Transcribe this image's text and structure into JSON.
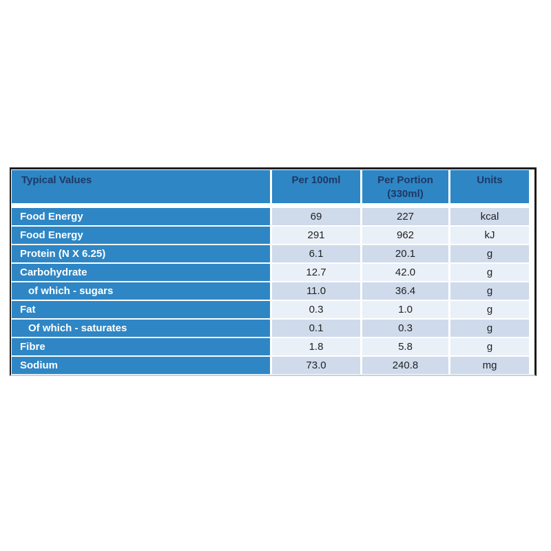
{
  "chart_data": {
    "type": "table",
    "title": "Typical Values",
    "columns": [
      "Typical Values",
      "Per 100ml",
      "Per Portion (330ml)",
      "Units"
    ],
    "numeric_rows": [
      {
        "label": "Food Energy",
        "per_100ml": 69,
        "per_portion_330ml": 227,
        "units": "kcal"
      },
      {
        "label": "Food Energy",
        "per_100ml": 291,
        "per_portion_330ml": 962,
        "units": "kJ"
      },
      {
        "label": "Protein (N X 6.25)",
        "per_100ml": 6.1,
        "per_portion_330ml": 20.1,
        "units": "g"
      },
      {
        "label": "Carbohydrate",
        "per_100ml": 12.7,
        "per_portion_330ml": 42.0,
        "units": "g"
      },
      {
        "label": "of which - sugars",
        "per_100ml": 11.0,
        "per_portion_330ml": 36.4,
        "units": "g"
      },
      {
        "label": "Fat",
        "per_100ml": 0.3,
        "per_portion_330ml": 1.0,
        "units": "g"
      },
      {
        "label": "Of which - saturates",
        "per_100ml": 0.1,
        "per_portion_330ml": 0.3,
        "units": "g"
      },
      {
        "label": "Fibre",
        "per_100ml": 1.8,
        "per_portion_330ml": 5.8,
        "units": "g"
      },
      {
        "label": "Sodium",
        "per_100ml": 73.0,
        "per_portion_330ml": 240.8,
        "units": "mg"
      }
    ],
    "layout_hints": {
      "header_background": "#2E86C5",
      "header_text_color": "#1F3864",
      "label_column_background": "#2E86C5",
      "label_text_color": "#FFFFFF",
      "band_dark": "#CFDAEB",
      "band_light": "#EAF0F8",
      "outer_border_color": "#201C1A",
      "gridline_color": "#FFFFFF"
    }
  },
  "table": {
    "header": {
      "typical_values": "Typical Values",
      "per_100ml": "Per 100ml",
      "per_portion": "Per Portion (330ml)",
      "units": "Units"
    },
    "rows": [
      {
        "label": "Food Energy",
        "per_100ml": "69",
        "per_portion": "227",
        "units": "kcal"
      },
      {
        "label": "Food Energy",
        "per_100ml": "291",
        "per_portion": "962",
        "units": "kJ"
      },
      {
        "label": "Protein (N X 6.25)",
        "per_100ml": "6.1",
        "per_portion": "20.1",
        "units": "g"
      },
      {
        "label": "Carbohydrate",
        "per_100ml": "12.7",
        "per_portion": "42.0",
        "units": "g"
      },
      {
        "label": "of which - sugars",
        "per_100ml": "11.0",
        "per_portion": "36.4",
        "units": "g"
      },
      {
        "label": "Fat",
        "per_100ml": "0.3",
        "per_portion": "1.0",
        "units": "g"
      },
      {
        "label": "Of which - saturates",
        "per_100ml": "0.1",
        "per_portion": "0.3",
        "units": "g"
      },
      {
        "label": "Fibre",
        "per_100ml": "1.8",
        "per_portion": "5.8",
        "units": "g"
      },
      {
        "label": "Sodium",
        "per_100ml": "73.0",
        "per_portion": "240.8",
        "units": "mg"
      }
    ]
  }
}
